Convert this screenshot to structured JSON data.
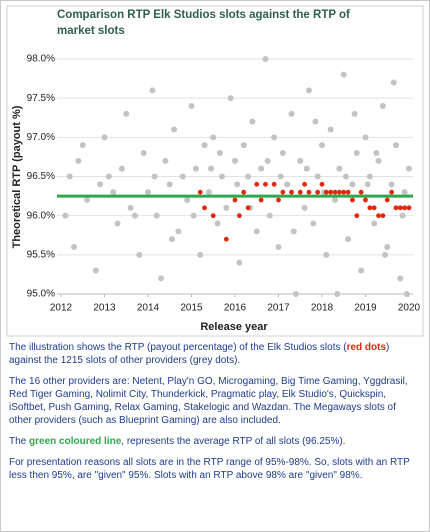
{
  "chart_data": {
    "type": "scatter",
    "title": "Comparison RTP Elk Studios slots against the RTP of market slots",
    "x_label": "Release year",
    "y_label": "Theoretical RTP (payout %)",
    "xlim": [
      2012,
      2020
    ],
    "xticks": [
      2012,
      2013,
      2014,
      2015,
      2016,
      2017,
      2018,
      2019,
      2020
    ],
    "ylim": [
      95,
      98
    ],
    "yticks": [
      {
        "value": 95,
        "label": "95.0%"
      },
      {
        "value": 95.5,
        "label": "95.5%"
      },
      {
        "value": 96,
        "label": "96.0%"
      },
      {
        "value": 96.5,
        "label": "96.5%"
      },
      {
        "value": 97,
        "label": "97.0%"
      },
      {
        "value": 97.5,
        "label": "97.5%"
      },
      {
        "value": 98,
        "label": "98.0%"
      }
    ],
    "grid": true,
    "series": [
      {
        "color": "#c3c3c3",
        "x": [
          2012.1,
          2012.2,
          2012.3,
          2012.5,
          2012.6,
          2012.8,
          2012.9,
          2013.0,
          2013.1,
          2013.3,
          2013.4,
          2013.5,
          2013.6,
          2013.8,
          2013.9,
          2014.0,
          2014.1,
          2014.2,
          2014.3,
          2014.4,
          2014.5,
          2014.6,
          2014.7,
          2014.8,
          2014.9,
          2015.0,
          2015.1,
          2015.2,
          2015.3,
          2015.4,
          2015.5,
          2015.6,
          2015.7,
          2015.8,
          2015.9,
          2016.0,
          2016.1,
          2016.2,
          2016.3,
          2016.4,
          2016.5,
          2016.6,
          2016.7,
          2016.8,
          2016.9,
          2017.0,
          2017.1,
          2017.2,
          2017.3,
          2017.4,
          2017.5,
          2017.6,
          2017.7,
          2017.8,
          2017.9,
          2018.0,
          2018.1,
          2018.2,
          2018.3,
          2018.4,
          2018.5,
          2018.6,
          2018.7,
          2018.8,
          2018.9,
          2019.0,
          2019.1,
          2019.2,
          2019.3,
          2019.4,
          2019.5,
          2019.6,
          2019.7,
          2019.8,
          2019.9,
          2020.0,
          2012.4,
          2013.2,
          2013.7,
          2014.15,
          2014.55,
          2015.05,
          2015.45,
          2015.65,
          2016.05,
          2016.35,
          2016.75,
          2017.05,
          2017.35,
          2017.65,
          2017.85,
          2018.05,
          2018.35,
          2018.55,
          2018.75,
          2019.05,
          2019.25,
          2019.45,
          2019.65,
          2019.85,
          2019.95
        ],
        "values": [
          96.0,
          96.5,
          95.6,
          96.9,
          96.2,
          95.3,
          96.4,
          97.0,
          96.5,
          95.9,
          96.6,
          97.3,
          96.1,
          95.5,
          96.8,
          96.3,
          97.6,
          96.0,
          95.2,
          96.7,
          96.4,
          97.1,
          95.8,
          96.5,
          96.2,
          97.4,
          96.6,
          95.5,
          96.9,
          96.3,
          97.0,
          95.9,
          96.5,
          96.1,
          97.5,
          96.7,
          95.4,
          96.9,
          96.5,
          97.2,
          95.8,
          96.6,
          98.0,
          96.0,
          97.0,
          95.6,
          96.8,
          96.4,
          97.3,
          95.0,
          96.7,
          96.1,
          97.6,
          95.9,
          96.5,
          96.9,
          95.5,
          97.1,
          96.2,
          96.6,
          97.8,
          95.7,
          96.4,
          96.8,
          95.3,
          97.0,
          96.5,
          95.9,
          96.7,
          97.4,
          95.6,
          96.4,
          96.9,
          95.2,
          96.3,
          96.6,
          96.7,
          96.3,
          96.0,
          96.5,
          95.7,
          96.0,
          96.6,
          96.8,
          96.4,
          96.1,
          96.7,
          96.5,
          95.8,
          96.6,
          97.2,
          96.3,
          95.0,
          96.5,
          97.3,
          96.4,
          96.8,
          95.5,
          97.7,
          96.0,
          95.0
        ]
      },
      {
        "color": "#e0290f",
        "x": [
          2015.2,
          2015.3,
          2015.5,
          2015.8,
          2016.0,
          2016.1,
          2016.2,
          2016.3,
          2016.5,
          2016.6,
          2016.7,
          2016.9,
          2017.0,
          2017.1,
          2017.3,
          2017.5,
          2017.6,
          2017.7,
          2017.9,
          2018.0,
          2018.1,
          2018.2,
          2018.3,
          2018.4,
          2018.5,
          2018.6,
          2018.7,
          2018.8,
          2018.9,
          2019.0,
          2019.1,
          2019.2,
          2019.3,
          2019.4,
          2019.5,
          2019.6,
          2019.7,
          2019.8,
          2019.9,
          2020.0
        ],
        "values": [
          96.3,
          96.1,
          96.0,
          95.7,
          96.2,
          96.0,
          96.3,
          96.1,
          96.4,
          96.2,
          96.4,
          96.4,
          96.2,
          96.3,
          96.3,
          96.3,
          96.4,
          96.3,
          96.3,
          96.4,
          96.3,
          96.3,
          96.3,
          96.3,
          96.3,
          96.3,
          96.2,
          96.0,
          96.3,
          96.2,
          96.1,
          96.1,
          96.0,
          96.0,
          96.2,
          96.3,
          96.1,
          96.1,
          96.1,
          96.1
        ]
      }
    ],
    "reference_line": {
      "y": 96.25,
      "color": "#2ea84d"
    }
  },
  "text": {
    "paragraphs": [
      [
        "The illustration shows the RTP (payout percentage) of the Elk Studios slots (",
        "red dots",
        ") against the 1215 slots of other providers  (grey dots)."
      ],
      [
        "The 16 other providers are: Netent, Play'n GO, Microgaming, Big Time Gaming, Yggdrasil, Red Tiger Gaming, Nolimit City, Thunderkick, Pragmatic play, Elk Studio's, Quickspin, iSoftbet, Push Gaming, Relax Gaming, Stakelogic and Wazdan.  The Megaways slots of other providers  (such as Blueprint Gaming) are also included."
      ],
      [
        "The ",
        "green coloured line",
        ", represents the average RTP of all slots (96.25%)."
      ],
      [
        "For presentation reasons all slots are in the RTP range of 95%-98%. So, slots with an RTP less then 95%, are \"given\" 95%. Slots with an RTP above 98% are \"given\" 98%."
      ]
    ]
  }
}
